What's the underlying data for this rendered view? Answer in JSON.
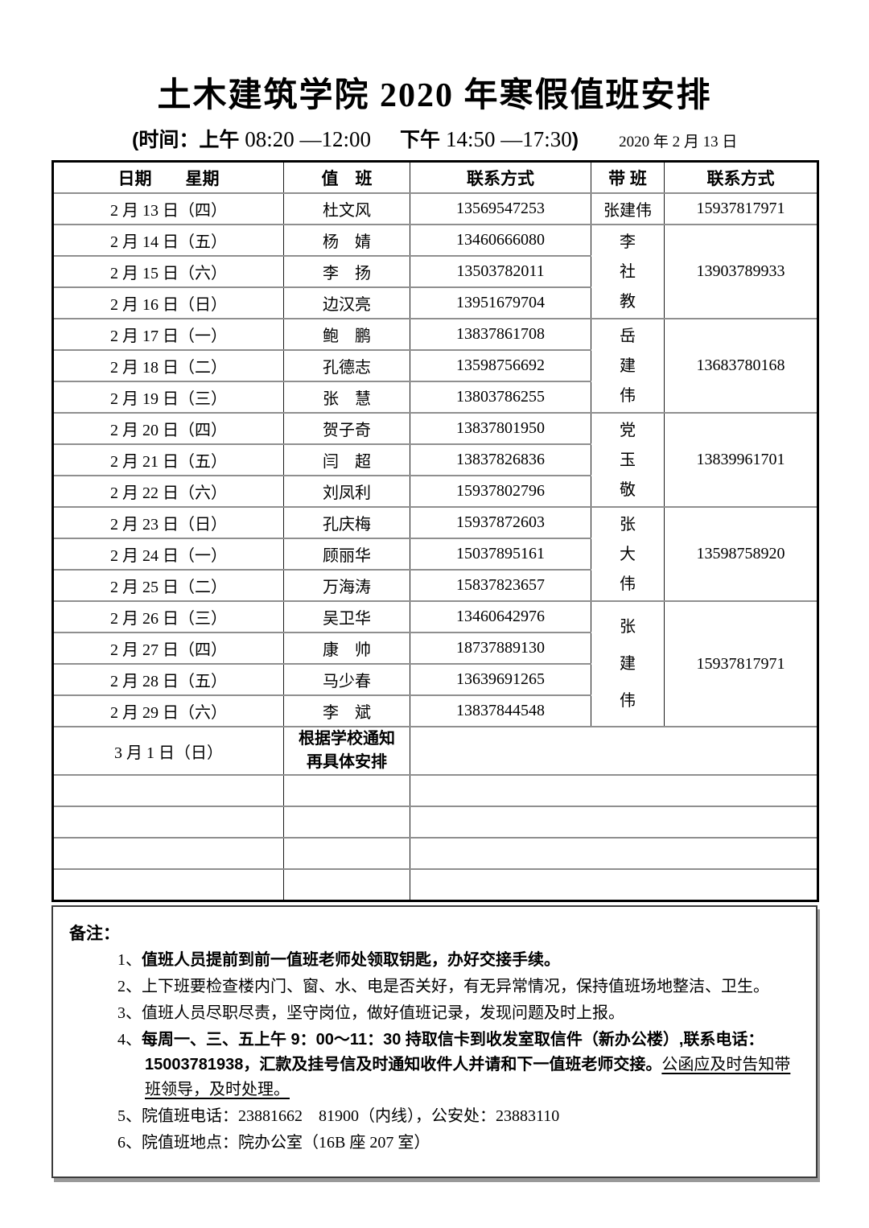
{
  "header": {
    "title": "土木建筑学院 2020 年寒假值班安排",
    "subtitle": {
      "part1": "(时间：上午 ",
      "am_time": "08:20 —12:00",
      "pm_label": "下午 ",
      "pm_time": "14:50 —17:30",
      "close": ")",
      "issue_date": "2020 年 2 月 13 日"
    }
  },
  "table": {
    "headers": [
      "日期　　星期",
      "值　班",
      "联系方式",
      "带 班",
      "联系方式"
    ],
    "rows": [
      {
        "date": "2 月 13 日（四）",
        "name": "杜文风",
        "phone": "13569547253",
        "lead": {
          "name": "张建伟",
          "phone": "15937817971",
          "span": 1,
          "vertical": false
        }
      },
      {
        "date": "2 月 14 日（五）",
        "name": "杨　婧",
        "phone": "13460666080",
        "lead": {
          "name": "李社教",
          "phone": "13903789933",
          "span": 3,
          "vertical": true
        }
      },
      {
        "date": "2 月 15 日（六）",
        "name": "李　扬",
        "phone": "13503782011"
      },
      {
        "date": "2 月 16 日（日）",
        "name": "边汉亮",
        "phone": "13951679704"
      },
      {
        "date": "2 月 17 日（一）",
        "name": "鲍　鹏",
        "phone": "13837861708",
        "lead": {
          "name": "岳建伟",
          "phone": "13683780168",
          "span": 3,
          "vertical": true
        }
      },
      {
        "date": "2 月 18 日（二）",
        "name": "孔德志",
        "phone": "13598756692"
      },
      {
        "date": "2 月 19 日（三）",
        "name": "张　慧",
        "phone": "13803786255"
      },
      {
        "date": "2 月 20 日（四）",
        "name": "贺子奇",
        "phone": "13837801950",
        "lead": {
          "name": "党玉敬",
          "phone": "13839961701",
          "span": 3,
          "vertical": true
        }
      },
      {
        "date": "2 月 21 日（五）",
        "name": "闫　超",
        "phone": "13837826836"
      },
      {
        "date": "2 月 22 日（六）",
        "name": "刘凤利",
        "phone": "15937802796"
      },
      {
        "date": "2 月 23 日（日）",
        "name": "孔庆梅",
        "phone": "15937872603",
        "lead": {
          "name": "张大伟",
          "phone": "13598758920",
          "span": 3,
          "vertical": true
        }
      },
      {
        "date": "2 月 24 日（一）",
        "name": "顾丽华",
        "phone": "15037895161"
      },
      {
        "date": "2 月 25 日（二）",
        "name": "万海涛",
        "phone": "15837823657"
      },
      {
        "date": "2 月 26 日（三）",
        "name": "吴卫华",
        "phone": "13460642976",
        "lead": {
          "name": "张建伟",
          "phone": "15937817971",
          "span": 4,
          "vertical": true
        }
      },
      {
        "date": "2 月 27 日（四）",
        "name": "康　帅",
        "phone": "18737889130"
      },
      {
        "date": "2 月 28 日（五）",
        "name": "马少春",
        "phone": "13639691265"
      },
      {
        "date": "2 月 29 日（六）",
        "name": "李　斌",
        "phone": "13837844548"
      },
      {
        "date": "3 月 1 日（日）",
        "name": "根据学校通知\n再具体安排",
        "phone": "",
        "special": true,
        "merged_rest": true
      },
      {
        "date": "",
        "name": "",
        "phone": "",
        "merged_rest": true
      },
      {
        "date": "",
        "name": "",
        "phone": "",
        "merged_rest": true
      },
      {
        "date": "",
        "name": "",
        "phone": "",
        "merged_rest": true
      },
      {
        "date": "",
        "name": "",
        "phone": "",
        "merged_rest": true
      }
    ]
  },
  "notes": {
    "label": "备注：",
    "items": [
      {
        "num": "1、",
        "bold": "值班人员提前到前一值班老师处领取钥匙，办好交接手续。"
      },
      {
        "num": "2、",
        "text": "上下班要检查楼内门、窗、水、电是否关好，有无异常情况，保持值班场地整洁、卫生。"
      },
      {
        "num": "3、",
        "text": "值班人员尽职尽责，坚守岗位，做好值班记录，发现问题及时上报。"
      },
      {
        "num": "4、",
        "bold": "每周一、三、五上午 9：00～11：30 持取信卡到收发室取信件（新办公楼）,联系电话：15003781938，汇款及挂号信及时通知收件人并请和下一值班老师交接。",
        "underline": "公函应及时告知带班领导，及时处理。"
      },
      {
        "num": "5、",
        "text": "院值班电话：23881662　81900（内线），公安处：23883110"
      },
      {
        "num": "6、",
        "text": "院值班地点：院办公室（16B 座 207 室）"
      }
    ]
  }
}
